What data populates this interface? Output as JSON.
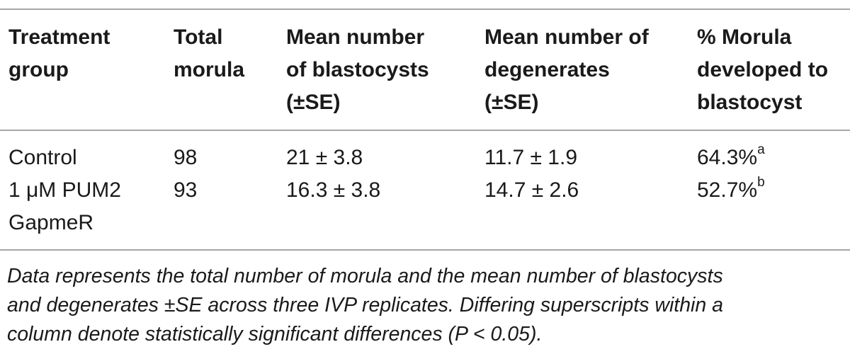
{
  "table": {
    "headers": [
      [
        "Treatment",
        "group"
      ],
      [
        "Total",
        "morula"
      ],
      [
        "Mean number",
        "of blastocysts",
        "(±SE)"
      ],
      [
        "Mean number of",
        "degenerates",
        "(±SE)"
      ],
      [
        "% Morula",
        "developed to",
        "blastocyst"
      ]
    ],
    "rows": [
      {
        "group": [
          "Control"
        ],
        "total_morula": "98",
        "blastocysts": "21 ± 3.8",
        "degenerates": "11.7 ± 1.9",
        "percent": "64.3%",
        "percent_sup": "a"
      },
      {
        "group": [
          "1 μM PUM2",
          "GapmeR"
        ],
        "total_morula": "93",
        "blastocysts": "16.3 ± 3.8",
        "degenerates": "14.7 ± 2.6",
        "percent": "52.7%",
        "percent_sup": "b"
      }
    ]
  },
  "footnote": {
    "lines": [
      "Data represents the total number of morula and the mean number of blastocysts",
      "and degenerates ±SE across three IVP replicates. Differing superscripts within a",
      "column denote statistically significant differences (P < 0.05)."
    ]
  }
}
